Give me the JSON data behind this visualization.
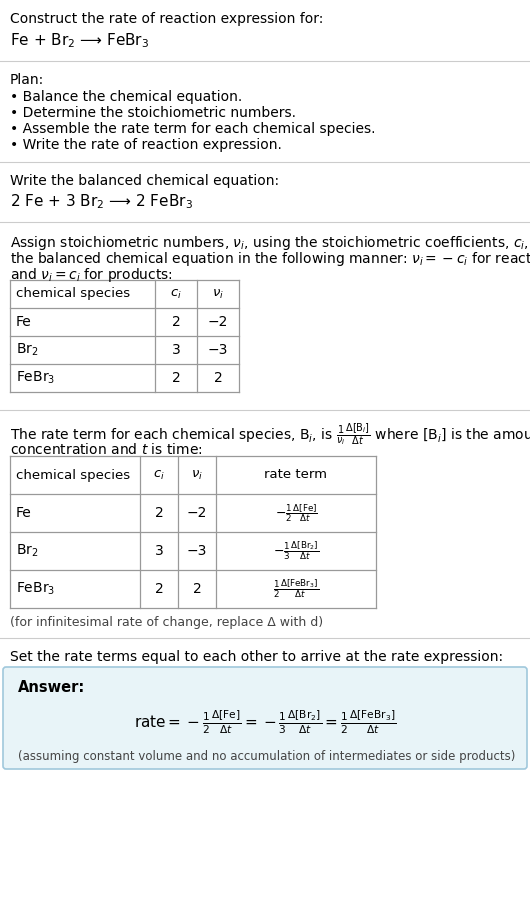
{
  "title_line1": "Construct the rate of reaction expression for:",
  "title_line2": "Fe + Br$_2$ ⟶ FeBr$_3$",
  "plan_header": "Plan:",
  "plan_items": [
    "• Balance the chemical equation.",
    "• Determine the stoichiometric numbers.",
    "• Assemble the rate term for each chemical species.",
    "• Write the rate of reaction expression."
  ],
  "balanced_header": "Write the balanced chemical equation:",
  "balanced_eq": "2 Fe + 3 Br$_2$ ⟶ 2 FeBr$_3$",
  "assign_text1": "Assign stoichiometric numbers, $\\nu_i$, using the stoichiometric coefficients, $c_i$, from",
  "assign_text2": "the balanced chemical equation in the following manner: $\\nu_i = -c_i$ for reactants",
  "assign_text3": "and $\\nu_i = c_i$ for products:",
  "table1_headers": [
    "chemical species",
    "$c_i$",
    "$\\nu_i$"
  ],
  "table1_rows": [
    [
      "Fe",
      "2",
      "−2"
    ],
    [
      "Br$_2$",
      "3",
      "−3"
    ],
    [
      "FeBr$_3$",
      "2",
      "2"
    ]
  ],
  "rate_text1": "The rate term for each chemical species, B$_i$, is $\\frac{1}{\\nu_i}\\frac{\\Delta[\\mathrm{B}_i]}{\\Delta t}$ where [B$_i$] is the amount",
  "rate_text2": "concentration and $t$ is time:",
  "table2_headers": [
    "chemical species",
    "$c_i$",
    "$\\nu_i$",
    "rate term"
  ],
  "table2_rows": [
    [
      "Fe",
      "2",
      "−2",
      "$-\\frac{1}{2}\\frac{\\Delta[\\mathrm{Fe}]}{\\Delta t}$"
    ],
    [
      "Br$_2$",
      "3",
      "−3",
      "$-\\frac{1}{3}\\frac{\\Delta[\\mathrm{Br}_2]}{\\Delta t}$"
    ],
    [
      "FeBr$_3$",
      "2",
      "2",
      "$\\frac{1}{2}\\frac{\\Delta[\\mathrm{FeBr}_3]}{\\Delta t}$"
    ]
  ],
  "infinitesimal_note": "(for infinitesimal rate of change, replace Δ with d)",
  "set_equal_text": "Set the rate terms equal to each other to arrive at the rate expression:",
  "answer_label": "Answer:",
  "answer_eq": "$\\mathrm{rate} = -\\frac{1}{2}\\frac{\\Delta[\\mathrm{Fe}]}{\\Delta t} = -\\frac{1}{3}\\frac{\\Delta[\\mathrm{Br}_2]}{\\Delta t} = \\frac{1}{2}\\frac{\\Delta[\\mathrm{FeBr}_3]}{\\Delta t}$",
  "answer_note": "(assuming constant volume and no accumulation of intermediates or side products)",
  "bg_color": "#ffffff",
  "answer_box_color": "#e8f4f8",
  "answer_box_border": "#a0c8dc",
  "table_line_color": "#bbbbbb",
  "text_color": "#000000",
  "separator_color": "#cccccc"
}
